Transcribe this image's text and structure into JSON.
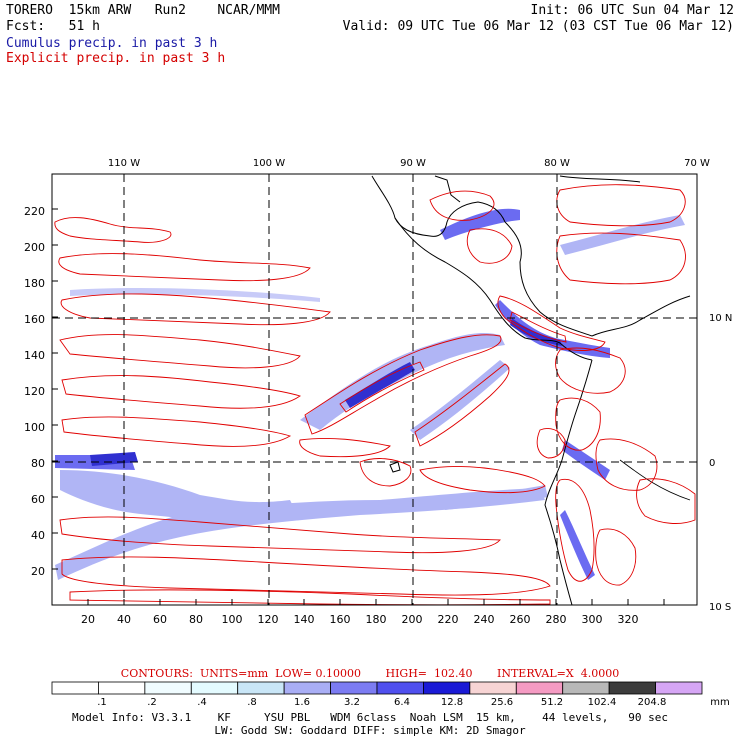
{
  "header": {
    "model_title": "TORERO  15km ARW   Run2    NCAR/MMM",
    "forecast_label": "Fcst:",
    "forecast_hours": "51 h",
    "init_time": "Init: 06 UTC Sun 04 Mar 12",
    "valid_time": "Valid: 09 UTC Tue 06 Mar 12 (03 CST Tue 06 Mar 12)"
  },
  "legend": {
    "cumulus": "Cumulus precip. in past 3 h",
    "explicit": "Explicit precip. in past 3 h"
  },
  "map": {
    "lon_labels": [
      "110 W",
      "100 W",
      "90 W",
      "80 W",
      "70 W"
    ],
    "lat_labels": [
      "10 N",
      "0",
      "10 S"
    ],
    "x_ticks": [
      "20",
      "40",
      "60",
      "80",
      "100",
      "120",
      "140",
      "160",
      "180",
      "200",
      "220",
      "240",
      "260",
      "280",
      "300",
      "320"
    ],
    "y_ticks": [
      "20",
      "40",
      "60",
      "80",
      "100",
      "120",
      "140",
      "160",
      "180",
      "200",
      "220"
    ],
    "colors": {
      "explicit_contour": "#e00000",
      "coastline": "#000000",
      "cumulus_light": "#a8aef5",
      "cumulus_mid": "#5b5bf0",
      "cumulus_dark": "#1a1acc"
    }
  },
  "contour_info": "CONTOURS:  UNITS=mm  LOW= 0.10000       HIGH=  102.40       INTERVAL=X  4.0000",
  "colorbar": {
    "bins": [
      "#ffffff",
      "#ffffff",
      "#f0fcff",
      "#e4fbff",
      "#c9e6f7",
      "#a9aef5",
      "#7c7cf2",
      "#5050ee",
      "#1a1ad6",
      "#f7d4d4",
      "#f59bc3",
      "#b8b8b8",
      "#3c3c3c",
      "#d6a6f5"
    ],
    "labels": [
      ".1",
      ".2",
      ".4",
      ".8",
      "1.6",
      "3.2",
      "6.4",
      "12.8",
      "25.6",
      "51.2",
      "102.4",
      "204.8"
    ],
    "unit": "mm"
  },
  "model_info": {
    "line1": "Model Info: V3.3.1    KF     YSU PBL   WDM 6class  Noah LSM  15 km,    44 levels,   90 sec",
    "line2": "LW: Godd SW: Goddard DIFF: simple KM: 2D Smagor"
  }
}
